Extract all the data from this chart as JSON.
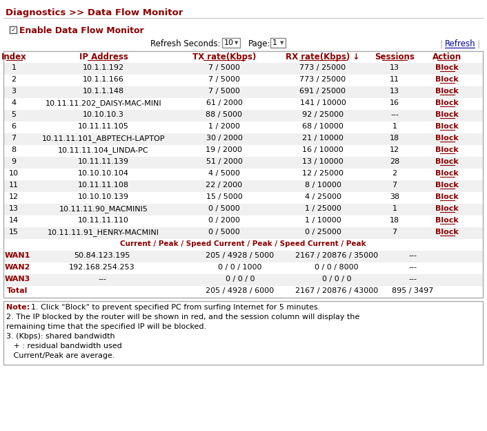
{
  "title": "Diagnostics >> Data Flow Monitor",
  "enable_label": "Enable Data Flow Monitor",
  "header": [
    "Index",
    "IP Address",
    "TX rate(Kbps)",
    "RX rate(Kbps) ↓",
    "Sessions",
    "Action"
  ],
  "rows": [
    [
      "1",
      "10.1.1.192",
      "7 / 5000",
      "773 / 25000",
      "13",
      "Block"
    ],
    [
      "2",
      "10.1.1.166",
      "7 / 5000",
      "773 / 25000",
      "11",
      "Block"
    ],
    [
      "3",
      "10.1.1.148",
      "7 / 5000",
      "691 / 25000",
      "13",
      "Block"
    ],
    [
      "4",
      "10.11.11.202_DAISY-MAC-MINI",
      "61 / 2000",
      "141 / 10000",
      "16",
      "Block"
    ],
    [
      "5",
      "10.10.10.3",
      "88 / 5000",
      "92 / 25000",
      "---",
      "Block"
    ],
    [
      "6",
      "10.11.11.105",
      "1 / 2000",
      "68 / 10000",
      "1",
      "Block"
    ],
    [
      "7",
      "10.11.11.101_ABPTECH-LAPTOP",
      "30 / 2000",
      "21 / 10000",
      "18",
      "Block"
    ],
    [
      "8",
      "10.11.11.104_LINDA-PC",
      "19 / 2000",
      "16 / 10000",
      "12",
      "Block"
    ],
    [
      "9",
      "10.11.11.139",
      "51 / 2000",
      "13 / 10000",
      "28",
      "Block"
    ],
    [
      "10",
      "10.10.10.104",
      "4 / 5000",
      "12 / 25000",
      "2",
      "Block"
    ],
    [
      "11",
      "10.11.11.108",
      "22 / 2000",
      "8 / 10000",
      "7",
      "Block"
    ],
    [
      "12",
      "10.10.10.139",
      "15 / 5000",
      "4 / 25000",
      "38",
      "Block"
    ],
    [
      "13",
      "10.11.11.90_MACMINI5",
      "0 / 5000",
      "1 / 25000",
      "1",
      "Block"
    ],
    [
      "14",
      "10.11.11.110",
      "0 / 2000",
      "1 / 10000",
      "18",
      "Block"
    ],
    [
      "15",
      "10.11.11.91_HENRY-MACMINI",
      "0 / 5000",
      "0 / 25000",
      "7",
      "Block"
    ]
  ],
  "subheader": "Current / Peak / Speed Current / Peak / Speed Current / Peak",
  "wan_rows": [
    [
      "WAN1",
      "50.84.123.195",
      "205 / 4928 / 5000",
      "2167 / 20876 / 35000",
      "---"
    ],
    [
      "WAN2",
      "192.168.254.253",
      "0 / 0 / 1000",
      "0 / 0 / 8000",
      "---"
    ],
    [
      "WAN3",
      "---",
      "0 / 0 / 0",
      "0 / 0 / 0",
      "---"
    ],
    [
      "Total",
      "",
      "205 / 4928 / 6000",
      "2167 / 20876 / 43000",
      "895 / 3497"
    ]
  ],
  "note_lines": [
    [
      "Note:  ",
      "1. Click \"Block\" to prevent specified PC from surfing Internet for 5 minutes."
    ],
    [
      "",
      "2. The IP blocked by the router will be shown in red, and the session column will display the"
    ],
    [
      "",
      "remaining time that the specified IP will be blocked."
    ],
    [
      "",
      "3. (Kbps): shared bandwidth"
    ],
    [
      "",
      "   + : residual bandwidth used"
    ],
    [
      "",
      "   Current/Peak are average."
    ]
  ],
  "color_red": "#8B0000",
  "color_border": "#aaaaaa",
  "color_row_even": "#f0f0f0",
  "color_row_odd": "#ffffff",
  "bg_color": "#ffffff"
}
